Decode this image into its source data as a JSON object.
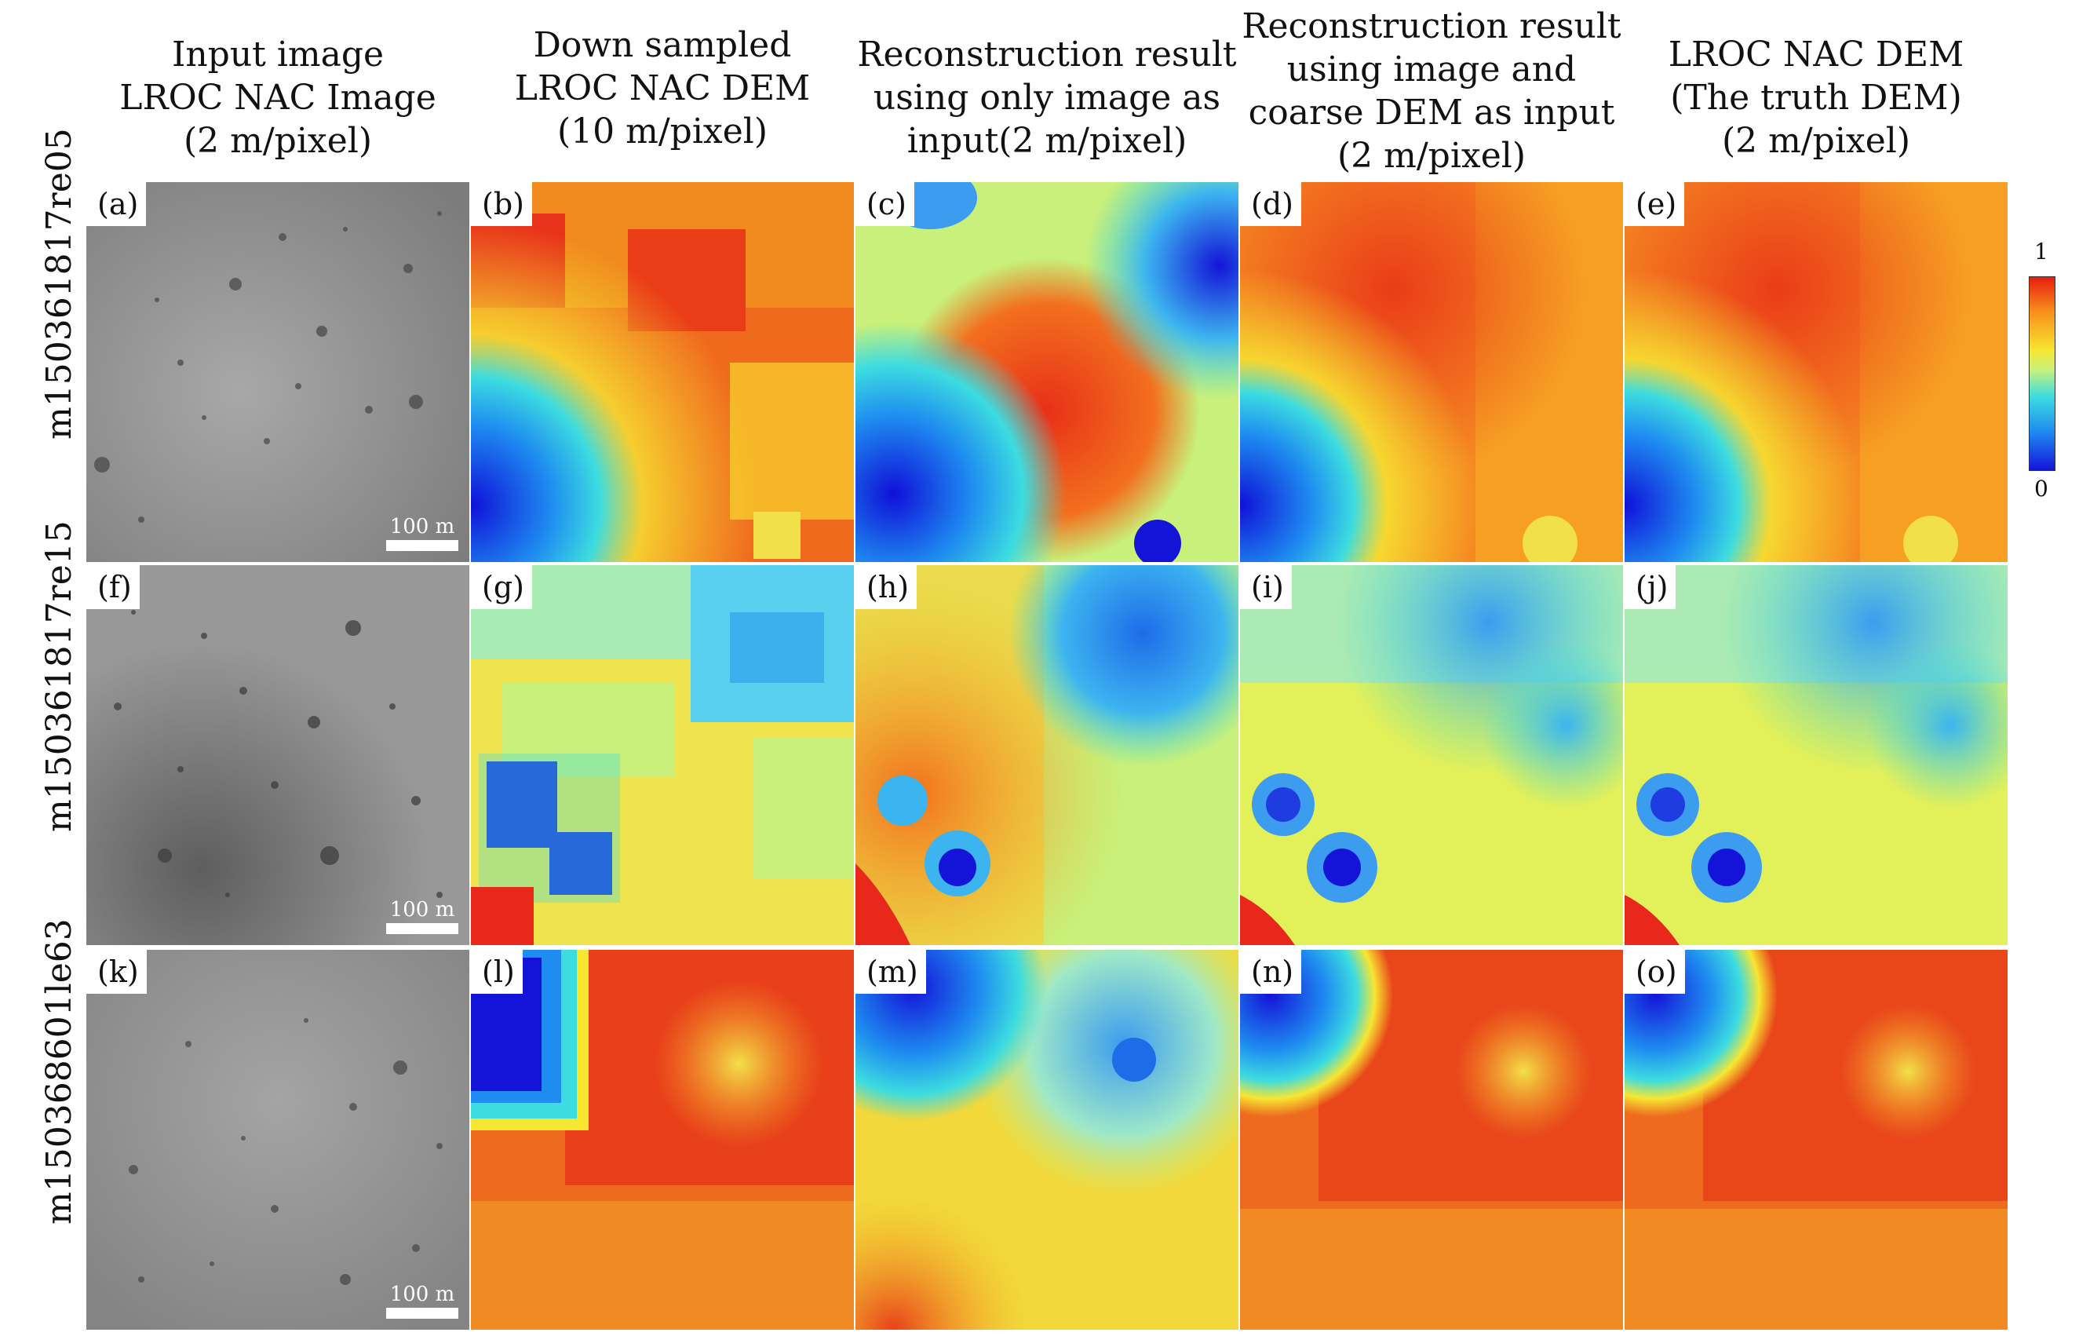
{
  "columns": [
    {
      "lines": [
        "Input image",
        "LROC NAC Image",
        "(2 m/pixel)"
      ]
    },
    {
      "lines": [
        "Down sampled",
        "LROC NAC DEM",
        "(10 m/pixel)"
      ]
    },
    {
      "lines": [
        "Reconstruction result",
        "using only image as",
        "input(2 m/pixel)"
      ]
    },
    {
      "lines": [
        "Reconstruction result",
        "using image and",
        "coarse DEM as input",
        "(2 m/pixel)"
      ]
    },
    {
      "lines": [
        "LROC NAC DEM",
        "(The truth DEM)",
        "(2 m/pixel)"
      ]
    }
  ],
  "rows": [
    {
      "label": "m150361817re05",
      "panels": [
        "(a)",
        "(b)",
        "(c)",
        "(d)",
        "(e)"
      ]
    },
    {
      "label": "m150361817re15",
      "panels": [
        "(f)",
        "(g)",
        "(h)",
        "(i)",
        "(j)"
      ]
    },
    {
      "label": "m150368601le63",
      "panels": [
        "(k)",
        "(l)",
        "(m)",
        "(n)",
        "(o)"
      ]
    }
  ],
  "scale_bar": "100 m",
  "colorbar": {
    "max": "1",
    "min": "0"
  },
  "colors": {
    "high": "#e61e10",
    "mid": "#f7e632",
    "low": "#1414d8",
    "lunar_gray": "#8c8c8c"
  }
}
